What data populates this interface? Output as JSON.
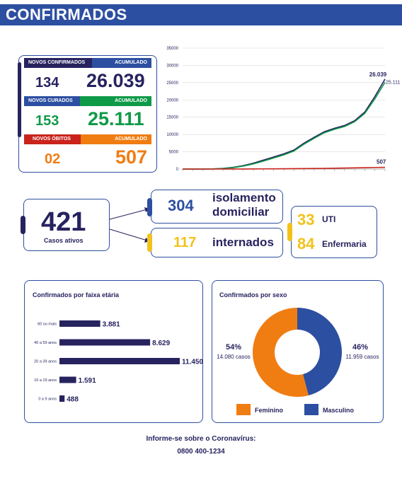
{
  "header": {
    "title": "CONFIRMADOS"
  },
  "stats": {
    "confirmados": {
      "label_new": "NOVOS CONFIRMADOS",
      "label_acc": "ACUMULADO",
      "new": "134",
      "acc": "26.039"
    },
    "curados": {
      "label_new": "NOVOS CURADOS",
      "label_acc": "ACUMULADO",
      "new": "153",
      "acc": "25.111"
    },
    "obitos": {
      "label_new": "NOVOS ÓBITOS",
      "label_acc": "ACUMULADO",
      "new": "02",
      "acc": "507"
    }
  },
  "colors": {
    "navy": "#27235f",
    "blue": "#2d4fa1",
    "green": "#0f9a48",
    "orange": "#f07d12",
    "red": "#c9231b",
    "yellow": "#f2c21b"
  },
  "active": {
    "value": "421",
    "label": "Casos ativos",
    "isolamento": {
      "value": "304",
      "label_line1": "isolamento",
      "label_line2": "domiciliar"
    },
    "internados": {
      "value": "117",
      "label": "internados"
    },
    "uti": {
      "value": "33",
      "label": "UTI"
    },
    "enfermaria": {
      "value": "84",
      "label": "Enfermaria"
    }
  },
  "age_card": {
    "title": "Confirmados por faixa etária"
  },
  "sex_card": {
    "title": "Confirmados por sexo"
  },
  "footer": {
    "line1": "Informe-se sobre o Coronavírus:",
    "line2": "0800 400-1234"
  },
  "chart_data": [
    {
      "type": "line",
      "title": "",
      "ylim": [
        0,
        35000
      ],
      "yticks": [
        "0",
        "5000",
        "10000",
        "15000",
        "20000",
        "25000",
        "30000",
        "35000"
      ],
      "grid": true,
      "x": [
        0,
        5,
        10,
        15,
        20,
        25,
        30,
        35,
        40,
        45,
        50,
        55,
        60,
        65,
        70,
        75,
        80,
        85,
        90,
        95,
        100
      ],
      "series": [
        {
          "color": "#27235f",
          "values": [
            0,
            0,
            0,
            50,
            200,
            500,
            1000,
            1700,
            2600,
            3500,
            4400,
            5500,
            7500,
            9200,
            10800,
            11800,
            12600,
            14000,
            16500,
            21000,
            26039
          ]
        },
        {
          "color": "#0f9a48",
          "values": [
            0,
            0,
            0,
            30,
            150,
            400,
            850,
            1500,
            2300,
            3200,
            4100,
            5200,
            7200,
            8900,
            10500,
            11500,
            12300,
            13700,
            16100,
            20300,
            25111
          ]
        },
        {
          "color": "#c9231b",
          "values": [
            0,
            0,
            0,
            2,
            5,
            10,
            20,
            35,
            50,
            70,
            90,
            110,
            140,
            170,
            200,
            240,
            290,
            340,
            400,
            460,
            507
          ]
        }
      ],
      "end_labels": [
        "26.039",
        "25.111",
        "507"
      ]
    },
    {
      "type": "bar",
      "orientation": "horizontal",
      "title": "Confirmados por faixa etária",
      "categories": [
        "60 ou mais",
        "40 a 59 anos",
        "20 a 39 anos",
        "10 a 19 anos",
        "0 a 9 anos"
      ],
      "values": [
        3881,
        8629,
        11450,
        1591,
        488
      ],
      "value_labels": [
        "3.881",
        "8.629",
        "11.450",
        "1.591",
        "488"
      ]
    },
    {
      "type": "pie",
      "title": "Confirmados por sexo",
      "categories": [
        "Feminino",
        "Masculino"
      ],
      "values": [
        14080,
        11959
      ],
      "percent_labels": [
        "54%",
        "46%"
      ],
      "count_labels": [
        "14.080 casos",
        "11.959 casos"
      ],
      "colors": [
        "#f07d12",
        "#2d4fa1"
      ]
    }
  ]
}
